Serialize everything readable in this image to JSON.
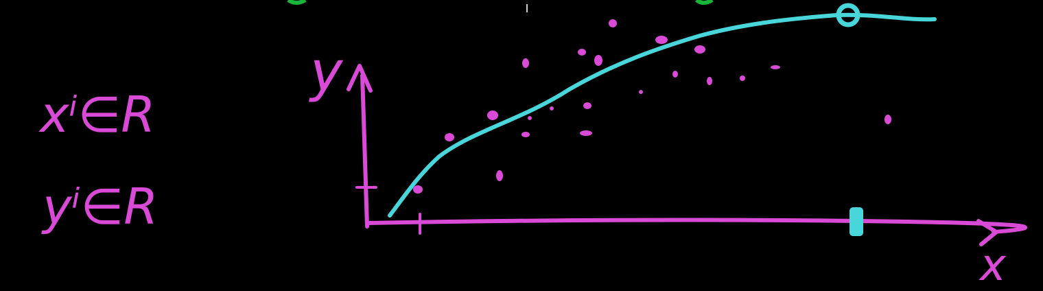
{
  "notation": {
    "x_line": "xⁱ∈R",
    "y_line": "yⁱ∈R"
  },
  "axes": {
    "y_label": "y",
    "x_label": "x"
  },
  "colors": {
    "background": "#000000",
    "ink_magenta": "#d94ad6",
    "curve_cyan": "#49d6da",
    "top_green": "#18b53a"
  }
}
